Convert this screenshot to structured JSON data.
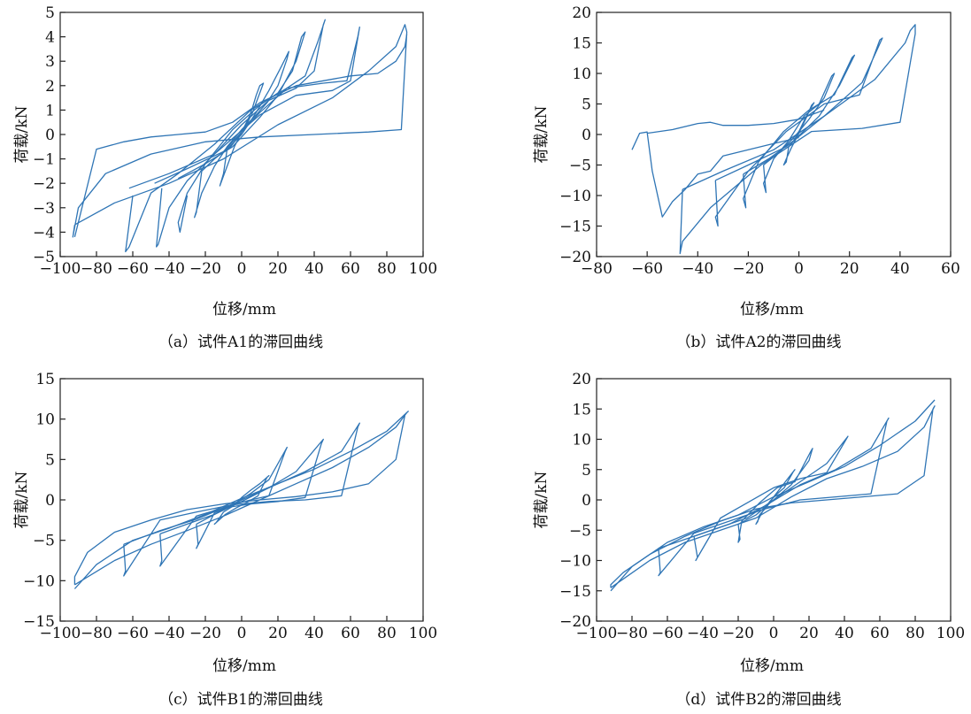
{
  "colors": {
    "series": "#2f75b5",
    "axis": "#222222"
  },
  "chart_data": [
    {
      "type": "line",
      "caption": "（a）试件A1的滞回曲线",
      "xlabel": "位移/mm",
      "ylabel": "荷载/kN",
      "xlim": [
        -100,
        100
      ],
      "ylim": [
        -5,
        5
      ],
      "xticks": [
        -100,
        -80,
        -60,
        -40,
        -20,
        0,
        20,
        40,
        60,
        80,
        100
      ],
      "yticks": [
        -5,
        -4,
        -3,
        -2,
        -1,
        0,
        1,
        2,
        3,
        4,
        5
      ],
      "grid": false,
      "series": [
        {
          "x": [
            -8,
            -6,
            -4,
            -2,
            0,
            2,
            4,
            6,
            8,
            10,
            12,
            10,
            8,
            6,
            4,
            2,
            0,
            -2,
            -4,
            -6,
            -8,
            -10,
            -12,
            -10,
            -8
          ],
          "y": [
            -0.6,
            -0.5,
            -0.3,
            -0.1,
            0.1,
            0.3,
            0.6,
            0.9,
            1.3,
            1.7,
            2.1,
            2.0,
            1.6,
            1.1,
            0.7,
            0.4,
            0.1,
            -0.2,
            -0.5,
            -0.9,
            -1.3,
            -1.7,
            -2.1,
            -1.6,
            -0.6
          ]
        },
        {
          "x": [
            -22,
            -15,
            -8,
            0,
            8,
            15,
            22,
            26,
            25,
            20,
            14,
            8,
            0,
            -8,
            -15,
            -22,
            -26,
            -25,
            -22
          ],
          "y": [
            -1.5,
            -1.0,
            -0.6,
            0.0,
            0.9,
            1.8,
            2.8,
            3.4,
            3.1,
            2.0,
            1.3,
            0.8,
            0.2,
            -0.5,
            -1.3,
            -2.4,
            -3.4,
            -3.2,
            -1.5
          ]
        },
        {
          "x": [
            -35,
            -20,
            -5,
            10,
            20,
            30,
            35,
            33,
            28,
            20,
            10,
            -5,
            -20,
            -30,
            -35,
            -34,
            -30
          ],
          "y": [
            -1.8,
            -1.2,
            -0.5,
            0.7,
            1.6,
            3.0,
            4.2,
            4.0,
            2.6,
            1.7,
            1.2,
            0.2,
            -1.2,
            -2.4,
            -3.6,
            -4.0,
            -2.5
          ]
        },
        {
          "x": [
            -48,
            -30,
            -10,
            10,
            25,
            35,
            42,
            46,
            45,
            40,
            30,
            15,
            0,
            -15,
            -30,
            -40,
            -46,
            -47,
            -44
          ],
          "y": [
            -2.0,
            -1.4,
            -0.7,
            0.9,
            1.9,
            2.4,
            3.8,
            4.7,
            4.5,
            2.6,
            1.9,
            1.4,
            0.4,
            -0.8,
            -1.9,
            -3.0,
            -4.5,
            -4.6,
            -2.2
          ]
        },
        {
          "x": [
            -62,
            -40,
            -15,
            10,
            30,
            50,
            60,
            65,
            64,
            58,
            45,
            25,
            5,
            -15,
            -35,
            -50,
            -62,
            -64,
            -60
          ],
          "y": [
            -2.2,
            -1.6,
            -0.8,
            0.8,
            1.6,
            1.8,
            2.2,
            4.4,
            4.0,
            2.2,
            2.1,
            1.9,
            1.0,
            -0.4,
            -1.6,
            -2.4,
            -4.6,
            -4.8,
            -2.5
          ]
        },
        {
          "x": [
            -92,
            -70,
            -40,
            -10,
            20,
            50,
            70,
            85,
            90,
            91,
            88,
            70,
            40,
            10,
            -20,
            -50,
            -75,
            -90,
            -93,
            -92
          ],
          "y": [
            -3.7,
            -2.8,
            -2.0,
            -1.0,
            0.4,
            1.5,
            2.6,
            3.6,
            4.5,
            4.2,
            0.2,
            0.1,
            0.0,
            -0.1,
            -0.3,
            -0.8,
            -1.6,
            -3.0,
            -4.2,
            -3.7
          ]
        },
        {
          "x": [
            -92,
            -80,
            -65,
            -50,
            -35,
            -20,
            -5,
            10,
            30,
            45,
            60,
            75,
            85,
            90,
            91
          ],
          "y": [
            -4.2,
            -0.6,
            -0.3,
            -0.1,
            0.0,
            0.1,
            0.5,
            1.3,
            2.0,
            2.2,
            2.4,
            2.5,
            3.0,
            3.6,
            4.1
          ]
        }
      ]
    },
    {
      "type": "line",
      "caption": "（b）试件A2的滞回曲线",
      "xlabel": "位移/mm",
      "ylabel": "荷载/kN",
      "xlim": [
        -80,
        60
      ],
      "ylim": [
        -20,
        20
      ],
      "xticks": [
        -80,
        -60,
        -40,
        -20,
        0,
        20,
        40,
        60
      ],
      "yticks": [
        -20,
        -15,
        -10,
        -5,
        0,
        5,
        10,
        15,
        20
      ],
      "grid": false,
      "series": [
        {
          "x": [
            -4,
            -2,
            0,
            2,
            4,
            6,
            5,
            3,
            0,
            -3,
            -5,
            -6,
            -5,
            -4
          ],
          "y": [
            -2.0,
            -1.0,
            0.5,
            2.2,
            3.8,
            5.2,
            4.8,
            2.8,
            0.2,
            -2.2,
            -4.0,
            -5.0,
            -4.5,
            -2.0
          ]
        },
        {
          "x": [
            -14,
            -8,
            -2,
            4,
            10,
            14,
            13,
            8,
            2,
            -4,
            -10,
            -14,
            -13,
            -14
          ],
          "y": [
            -5.0,
            -3.0,
            -0.5,
            2.5,
            6.0,
            10.0,
            9.6,
            5.0,
            3.0,
            -1.0,
            -4.0,
            -8.0,
            -9.5,
            -5.0
          ]
        },
        {
          "x": [
            -22,
            -12,
            -2,
            8,
            16,
            22,
            21,
            14,
            4,
            -6,
            -16,
            -22,
            -21,
            -22
          ],
          "y": [
            -6.5,
            -4.0,
            -1.0,
            3.0,
            8.0,
            13.0,
            12.6,
            6.5,
            4.0,
            0.5,
            -4.5,
            -10.5,
            -12.0,
            -6.5
          ]
        },
        {
          "x": [
            -33,
            -20,
            -5,
            10,
            25,
            33,
            32,
            24,
            10,
            -5,
            -20,
            -33,
            -32,
            -33
          ],
          "y": [
            -7.5,
            -5.0,
            -2.0,
            3.0,
            8.5,
            15.8,
            15.5,
            6.5,
            5.0,
            0.5,
            -6.0,
            -13.5,
            -15.0,
            -7.5
          ]
        },
        {
          "x": [
            -46,
            -30,
            -10,
            10,
            30,
            42,
            44,
            46,
            46,
            40,
            25,
            5,
            -15,
            -35,
            -46,
            -47,
            -46
          ],
          "y": [
            -9.0,
            -6.0,
            -2.5,
            3.0,
            9.0,
            15.0,
            17.0,
            18.0,
            16.5,
            2.0,
            1.0,
            0.5,
            -5.0,
            -12.0,
            -17.5,
            -19.5,
            -9.0
          ]
        },
        {
          "x": [
            -66,
            -63,
            -60,
            -58,
            -54,
            -50,
            -45,
            -40,
            -35,
            -30,
            -20,
            -10,
            0
          ],
          "y": [
            -2.5,
            0.2,
            0.4,
            -6.0,
            -13.5,
            -11.0,
            -9.0,
            -6.5,
            -6.0,
            -3.5,
            -2.5,
            -1.5,
            -0.5
          ]
        },
        {
          "x": [
            -60,
            -50,
            -40,
            -35,
            -30,
            -20,
            -10,
            0,
            10
          ],
          "y": [
            0.2,
            0.8,
            1.8,
            2.0,
            1.5,
            1.5,
            1.8,
            2.5,
            4.0
          ]
        }
      ]
    },
    {
      "type": "line",
      "caption": "（c）试件B1的滞回曲线",
      "xlabel": "位移/mm",
      "ylabel": "荷载/kN",
      "xlim": [
        -100,
        100
      ],
      "ylim": [
        -15,
        15
      ],
      "xticks": [
        -100,
        -80,
        -60,
        -40,
        -20,
        0,
        20,
        40,
        60,
        80,
        100
      ],
      "yticks": [
        -15,
        -10,
        -5,
        0,
        5,
        10,
        15
      ],
      "grid": false,
      "series": [
        {
          "x": [
            -10,
            -5,
            0,
            5,
            10,
            15,
            14,
            9,
            3,
            -3,
            -9,
            -15,
            -14,
            -10
          ],
          "y": [
            -1.5,
            -0.8,
            0.3,
            1.2,
            2.0,
            3.0,
            2.8,
            0.5,
            -0.3,
            -1.0,
            -1.8,
            -3.0,
            -2.8,
            -1.5
          ]
        },
        {
          "x": [
            -25,
            -15,
            -5,
            5,
            15,
            25,
            24,
            15,
            5,
            -5,
            -15,
            -25,
            -24,
            -25
          ],
          "y": [
            -3.0,
            -1.8,
            -0.6,
            0.8,
            2.5,
            6.5,
            6.0,
            0.5,
            0.0,
            -0.6,
            -1.6,
            -6.0,
            -5.5,
            -3.0
          ]
        },
        {
          "x": [
            -45,
            -30,
            -15,
            0,
            15,
            30,
            45,
            44,
            35,
            20,
            5,
            -10,
            -25,
            -45,
            -44,
            -45
          ],
          "y": [
            -4.2,
            -3.0,
            -1.8,
            -0.2,
            1.5,
            3.5,
            7.5,
            7.0,
            0.3,
            -0.2,
            -0.5,
            -1.0,
            -2.0,
            -8.2,
            -7.5,
            -4.2
          ]
        },
        {
          "x": [
            -65,
            -45,
            -25,
            -5,
            15,
            35,
            55,
            65,
            64,
            55,
            35,
            15,
            -5,
            -25,
            -45,
            -65,
            -64,
            -65
          ],
          "y": [
            -5.5,
            -3.8,
            -2.4,
            -0.5,
            1.5,
            3.5,
            6.0,
            9.5,
            9.0,
            0.5,
            0.0,
            -0.2,
            -0.6,
            -1.5,
            -2.5,
            -9.4,
            -8.8,
            -5.5
          ]
        },
        {
          "x": [
            -92,
            -70,
            -50,
            -30,
            -10,
            10,
            30,
            50,
            70,
            85,
            91,
            90,
            85,
            70,
            50,
            30,
            10,
            -10,
            -30,
            -50,
            -70,
            -85,
            -92,
            -92
          ],
          "y": [
            -10.5,
            -7.5,
            -5.5,
            -3.8,
            -2.0,
            0.0,
            2.0,
            4.0,
            6.5,
            9.0,
            10.8,
            10.5,
            5.0,
            2.0,
            1.0,
            0.4,
            0.0,
            -0.5,
            -1.2,
            -2.5,
            -4.0,
            -6.5,
            -9.5,
            -10.5
          ]
        },
        {
          "x": [
            -92,
            -80,
            -60,
            -40,
            -20,
            0,
            20,
            40,
            60,
            80,
            92
          ],
          "y": [
            -11.0,
            -8.0,
            -5.0,
            -3.5,
            -1.8,
            0.2,
            2.0,
            3.8,
            6.0,
            8.5,
            11.0
          ]
        }
      ]
    },
    {
      "type": "line",
      "caption": "（d）试件B2的滞回曲线",
      "xlabel": "位移/mm",
      "ylabel": "荷载/kN",
      "xlim": [
        -100,
        100
      ],
      "ylim": [
        -20,
        20
      ],
      "xticks": [
        -100,
        -80,
        -60,
        -40,
        -20,
        0,
        20,
        40,
        60,
        80,
        100
      ],
      "yticks": [
        -20,
        -15,
        -10,
        -5,
        0,
        5,
        10,
        15,
        20
      ],
      "grid": false,
      "series": [
        {
          "x": [
            -8,
            -4,
            0,
            4,
            8,
            12,
            11,
            6,
            2,
            -2,
            -6,
            -10,
            -9,
            -8
          ],
          "y": [
            -2.5,
            -1.2,
            0.5,
            2.0,
            3.5,
            5.0,
            4.6,
            2.0,
            1.0,
            -0.2,
            -1.8,
            -4.0,
            -3.6,
            -2.5
          ]
        },
        {
          "x": [
            -20,
            -10,
            0,
            10,
            20,
            22,
            21,
            12,
            2,
            -8,
            -18,
            -20,
            -19,
            -20
          ],
          "y": [
            -4.0,
            -2.5,
            0.0,
            2.5,
            6.5,
            8.5,
            8.0,
            3.0,
            2.0,
            -0.5,
            -3.5,
            -7.0,
            -6.5,
            -4.0
          ]
        },
        {
          "x": [
            -45,
            -30,
            -15,
            0,
            15,
            30,
            42,
            41,
            30,
            15,
            0,
            -15,
            -30,
            -44,
            -43,
            -45
          ],
          "y": [
            -6.0,
            -4.5,
            -3.0,
            0.0,
            3.0,
            6.0,
            10.5,
            10.0,
            4.5,
            3.5,
            2.0,
            -0.5,
            -3.0,
            -10.0,
            -9.5,
            -6.0
          ]
        },
        {
          "x": [
            -65,
            -45,
            -25,
            -5,
            15,
            35,
            55,
            65,
            64,
            55,
            35,
            15,
            -5,
            -25,
            -45,
            -65,
            -64,
            -65
          ],
          "y": [
            -8.0,
            -6.0,
            -4.0,
            -1.0,
            2.5,
            5.0,
            8.5,
            13.5,
            13.0,
            1.0,
            0.5,
            0.0,
            -1.5,
            -3.5,
            -5.5,
            -12.5,
            -12.0,
            -8.0
          ]
        },
        {
          "x": [
            -92,
            -70,
            -50,
            -30,
            -10,
            10,
            30,
            50,
            70,
            85,
            91,
            90,
            85,
            70,
            50,
            30,
            10,
            -10,
            -30,
            -50,
            -70,
            -85,
            -92,
            -92
          ],
          "y": [
            -14.5,
            -10.0,
            -7.0,
            -5.0,
            -3.0,
            0.5,
            3.5,
            5.5,
            8.0,
            12.0,
            15.5,
            15.0,
            4.0,
            1.0,
            0.5,
            0.0,
            -0.5,
            -1.5,
            -3.5,
            -6.0,
            -9.0,
            -12.0,
            -14.0,
            -14.5
          ]
        },
        {
          "x": [
            -92,
            -80,
            -60,
            -40,
            -20,
            0,
            20,
            40,
            60,
            80,
            91
          ],
          "y": [
            -15.0,
            -11.0,
            -7.0,
            -4.5,
            -2.5,
            0.5,
            3.0,
            5.5,
            9.0,
            13.0,
            16.5
          ]
        }
      ]
    }
  ]
}
